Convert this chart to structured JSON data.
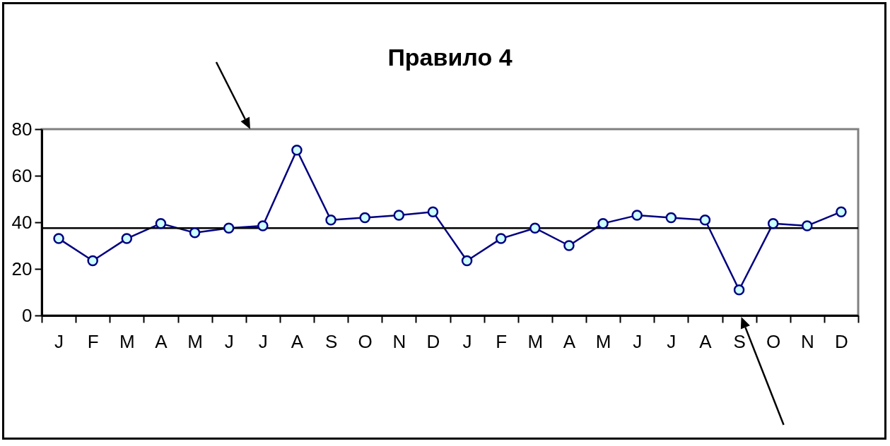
{
  "chart_data": {
    "type": "line",
    "title": "Правило 4",
    "categories": [
      "J",
      "F",
      "M",
      "A",
      "M",
      "J",
      "J",
      "A",
      "S",
      "O",
      "N",
      "D",
      "J",
      "F",
      "M",
      "A",
      "M",
      "J",
      "J",
      "A",
      "S",
      "O",
      "N",
      "D"
    ],
    "series": [
      {
        "color": "#000080",
        "values": [
          33,
          23.5,
          33,
          39.5,
          35.5,
          37.5,
          38.5,
          71,
          41,
          42,
          43,
          44.5,
          23.5,
          33,
          37.5,
          30,
          39.5,
          43,
          42,
          41,
          11,
          39.5,
          38.5,
          44.5
        ]
      }
    ],
    "marker": "circle",
    "ylim": [
      0,
      80
    ],
    "yticks": [
      0,
      20,
      40,
      60,
      80
    ],
    "ref_lines": [
      {
        "axis": "y",
        "value": 37.5,
        "color": "#000000"
      }
    ],
    "grid": false,
    "legend": false
  }
}
